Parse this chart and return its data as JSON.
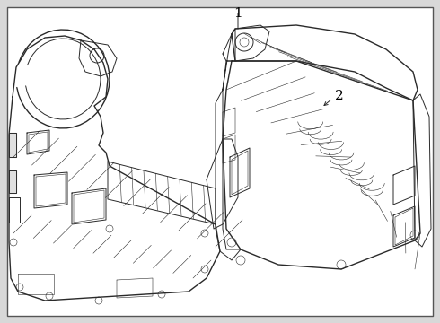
{
  "background_color": "#d8d8d8",
  "panel_background": "#ffffff",
  "border_color": "#000000",
  "line_color": "#2a2a2a",
  "label1": "1",
  "label2": "2",
  "fig_width": 4.9,
  "fig_height": 3.6,
  "dpi": 100
}
